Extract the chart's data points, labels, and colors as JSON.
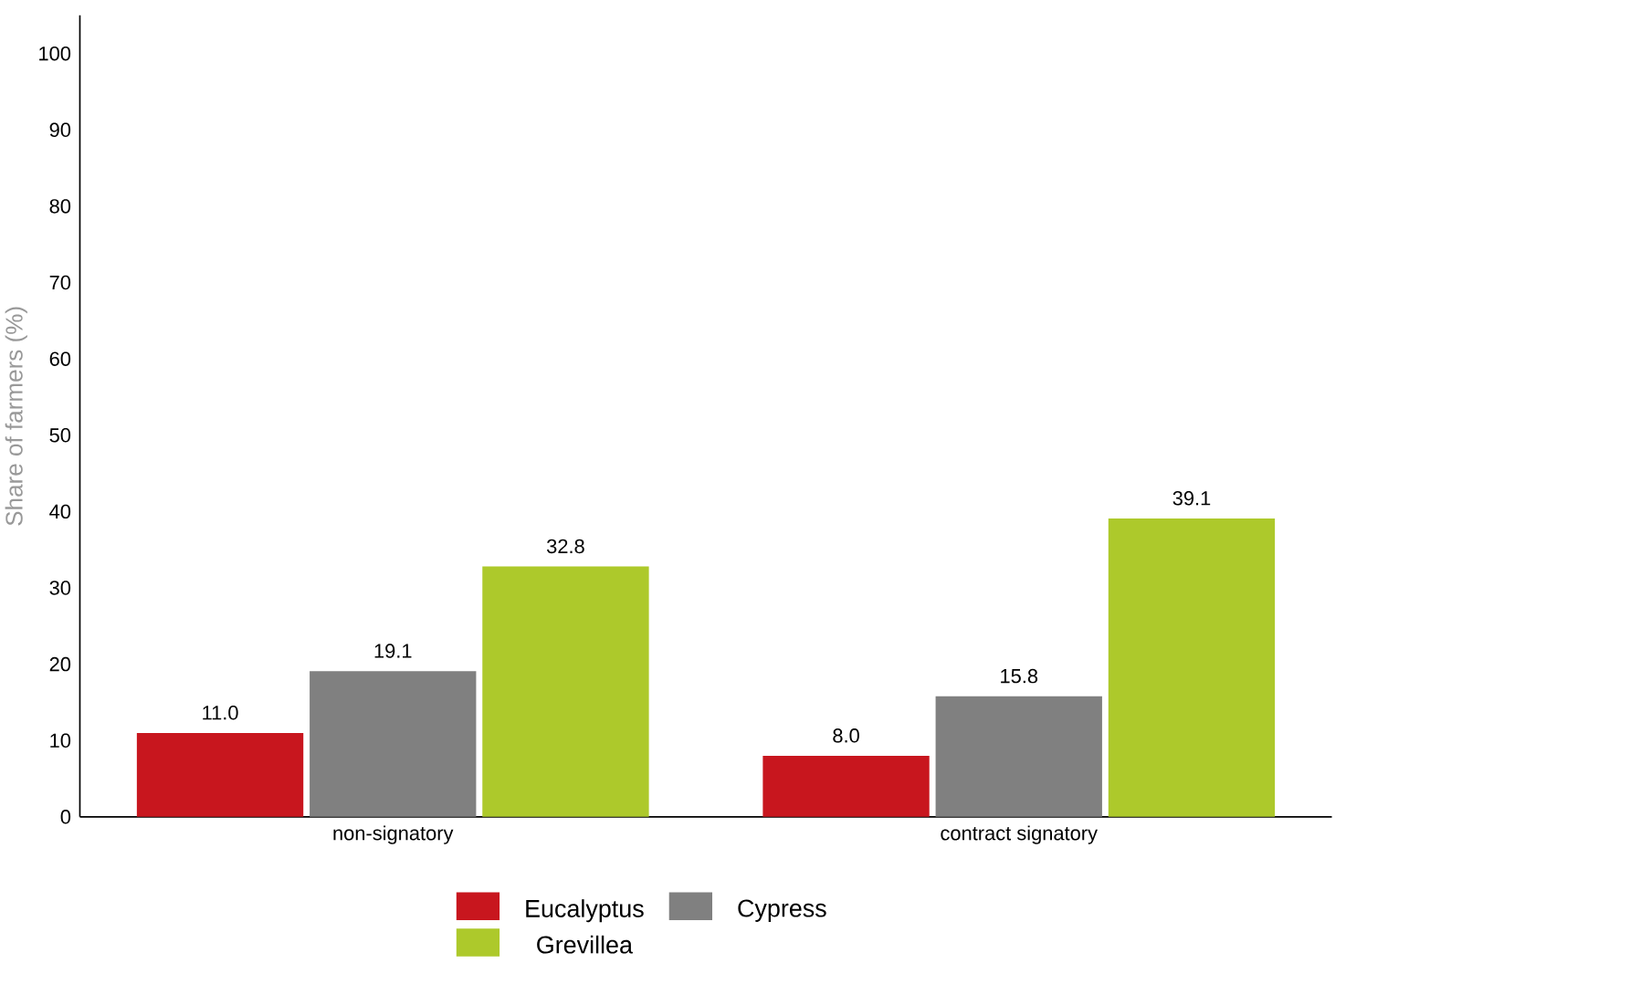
{
  "chart_data": {
    "type": "bar",
    "ylabel": "Share of farmers (%)",
    "categories": [
      "non-signatory",
      "contract signatory"
    ],
    "series": [
      {
        "name": "Eucalyptus",
        "color": "#c8161e",
        "values": [
          11.0,
          8.0
        ],
        "value_labels": [
          "11.0",
          "8.0"
        ]
      },
      {
        "name": "Cypress",
        "color": "#808080",
        "values": [
          19.1,
          15.8
        ],
        "value_labels": [
          "19.1",
          "15.8"
        ]
      },
      {
        "name": "Grevillea",
        "color": "#adc92b",
        "values": [
          32.8,
          39.1
        ],
        "value_labels": [
          "32.8",
          "39.1"
        ]
      }
    ],
    "ylim": [
      0,
      105
    ],
    "yticks": [
      0,
      10,
      20,
      30,
      40,
      50,
      60,
      70,
      80,
      90,
      100
    ],
    "legend": "bottom"
  }
}
